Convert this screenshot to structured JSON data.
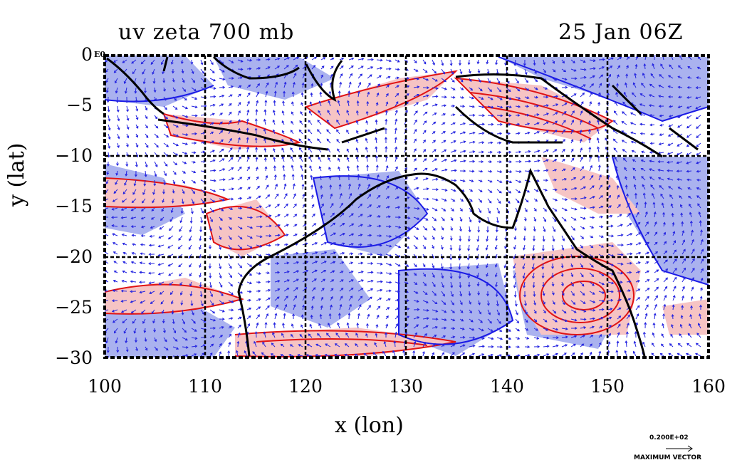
{
  "title_left": "uv zeta 700 mb",
  "title_right": "25 Jan 06Z",
  "origin_tag": "E0",
  "axes": {
    "x_label": "x (lon)",
    "y_label": "y (lat)",
    "x_ticks": [
      "100",
      "110",
      "120",
      "130",
      "140",
      "150",
      "160"
    ],
    "y_ticks": [
      "0",
      "−5",
      "−10",
      "−15",
      "−20",
      "−25",
      "−30"
    ],
    "xlim": [
      100,
      160
    ],
    "ylim": [
      -30,
      0
    ]
  },
  "reference_vector": {
    "value": "0.200E+02",
    "label": "MAXIMUM VECTOR"
  },
  "colors": {
    "negative_fill": "#aab2ef",
    "positive_fill": "#f6c4c4",
    "negative_contour": "#1a1ae6",
    "positive_contour": "#e01414",
    "vectors": "#2424e0",
    "coastline": "#000000",
    "grid": "#000000"
  }
}
